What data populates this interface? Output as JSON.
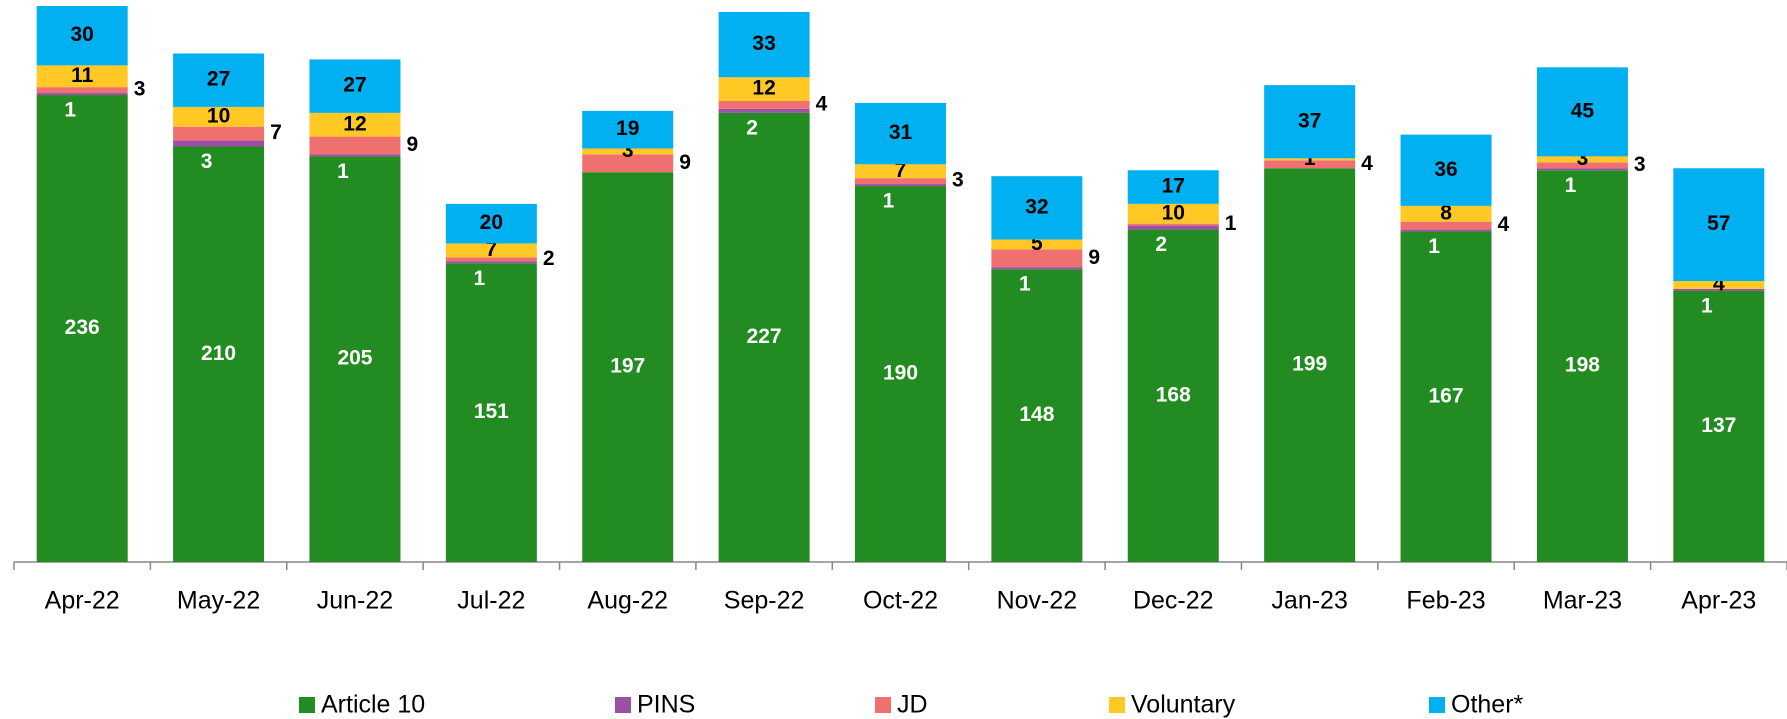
{
  "chart_data": {
    "type": "stacked-bar",
    "categories": [
      "Apr-22",
      "May-22",
      "Jun-22",
      "Jul-22",
      "Aug-22",
      "Sep-22",
      "Oct-22",
      "Nov-22",
      "Dec-22",
      "Jan-23",
      "Feb-23",
      "Mar-23",
      "Apr-23"
    ],
    "series": [
      {
        "name": "Article 10",
        "color": "#228B22",
        "values": [
          236,
          210,
          205,
          151,
          197,
          227,
          190,
          148,
          168,
          199,
          167,
          198,
          137
        ]
      },
      {
        "name": "PINS",
        "color": "#9B4FA5",
        "values": [
          1,
          3,
          1,
          1,
          null,
          2,
          1,
          1,
          2,
          null,
          1,
          1,
          1
        ]
      },
      {
        "name": "JD",
        "color": "#F07070",
        "values": [
          3,
          7,
          9,
          2,
          9,
          4,
          3,
          9,
          1,
          4,
          4,
          3,
          null
        ]
      },
      {
        "name": "Voluntary",
        "color": "#FFC825",
        "values": [
          11,
          10,
          12,
          7,
          3,
          12,
          7,
          5,
          10,
          1,
          8,
          3,
          4
        ]
      },
      {
        "name": "Other*",
        "color": "#00B0F0",
        "values": [
          30,
          27,
          27,
          20,
          19,
          33,
          31,
          32,
          17,
          37,
          36,
          45,
          57
        ]
      }
    ],
    "legend": "bottom"
  }
}
